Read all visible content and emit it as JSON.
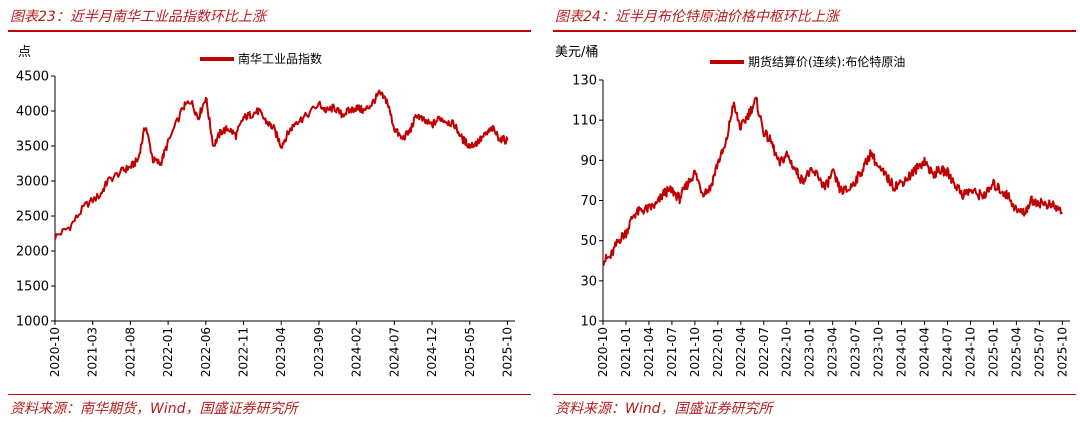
{
  "chart_data": [
    {
      "type": "line",
      "figure_title": "图表23：近半月南华工业品指数环比上涨",
      "source": "资料来源：南华期货，Wind，国盛证券研究所",
      "ylabel": "点",
      "ylim": [
        1000,
        4500
      ],
      "yticks": [
        "1000",
        "1500",
        "2000",
        "2500",
        "3000",
        "3500",
        "4000",
        "4500"
      ],
      "xticks": [
        "2020-10",
        "2021-03",
        "2021-08",
        "2022-01",
        "2022-06",
        "2022-11",
        "2023-04",
        "2023-09",
        "2024-02",
        "2024-07",
        "2024-12",
        "2025-05",
        "2025-10"
      ],
      "legend": "top-center",
      "series": [
        {
          "name": "南华工业品指数",
          "color": "#c00000",
          "x": [
            "2020-10",
            "2020-12",
            "2021-02",
            "2021-04",
            "2021-05",
            "2021-07",
            "2021-08",
            "2021-09",
            "2021-10",
            "2021-11",
            "2021-12",
            "2022-01",
            "2022-03",
            "2022-04",
            "2022-05",
            "2022-06",
            "2022-07",
            "2022-08",
            "2022-09",
            "2022-10",
            "2022-11",
            "2022-12",
            "2023-01",
            "2023-02",
            "2023-03",
            "2023-04",
            "2023-05",
            "2023-06",
            "2023-07",
            "2023-09",
            "2023-10",
            "2023-11",
            "2023-12",
            "2024-01",
            "2024-02",
            "2024-03",
            "2024-04",
            "2024-05",
            "2024-06",
            "2024-07",
            "2024-08",
            "2024-09",
            "2024-10",
            "2024-11",
            "2024-12",
            "2025-01",
            "2025-02",
            "2025-03",
            "2025-04",
            "2025-05",
            "2025-06",
            "2025-07",
            "2025-08",
            "2025-09",
            "2025-10"
          ],
          "values": [
            2200,
            2350,
            2650,
            2800,
            3000,
            3150,
            3200,
            3300,
            3800,
            3300,
            3250,
            3550,
            4050,
            4150,
            3900,
            4200,
            3500,
            3700,
            3750,
            3650,
            3900,
            3950,
            4000,
            3850,
            3750,
            3500,
            3700,
            3850,
            3900,
            4100,
            4000,
            4050,
            3950,
            4000,
            4050,
            4000,
            4100,
            4250,
            4150,
            3750,
            3600,
            3700,
            3950,
            3850,
            3800,
            3900,
            3850,
            3800,
            3600,
            3500,
            3550,
            3650,
            3750,
            3600,
            3580
          ]
        }
      ]
    },
    {
      "type": "line",
      "figure_title": "图表24：近半月布伦特原油价格中枢环比上涨",
      "source": "资料来源：Wind，国盛证券研究所",
      "ylabel": "美元/桶",
      "ylim": [
        10,
        130
      ],
      "yticks": [
        "10",
        "30",
        "50",
        "70",
        "90",
        "110",
        "130"
      ],
      "xticks": [
        "2020-10",
        "2021-01",
        "2021-04",
        "2021-07",
        "2021-10",
        "2022-01",
        "2022-04",
        "2022-07",
        "2022-10",
        "2023-01",
        "2023-04",
        "2023-07",
        "2023-10",
        "2024-01",
        "2024-04",
        "2024-07",
        "2024-10",
        "2025-01",
        "2025-04",
        "2025-07",
        "2025-10"
      ],
      "legend": "top-center",
      "series": [
        {
          "name": "期货结算价(连续):布伦特原油",
          "color": "#c00000",
          "x": [
            "2020-10",
            "2020-11",
            "2020-12",
            "2021-01",
            "2021-02",
            "2021-03",
            "2021-04",
            "2021-05",
            "2021-06",
            "2021-07",
            "2021-08",
            "2021-09",
            "2021-10",
            "2021-11",
            "2021-12",
            "2022-01",
            "2022-02",
            "2022-03",
            "2022-04",
            "2022-05",
            "2022-06",
            "2022-07",
            "2022-08",
            "2022-09",
            "2022-10",
            "2022-11",
            "2022-12",
            "2023-01",
            "2023-02",
            "2023-03",
            "2023-04",
            "2023-05",
            "2023-06",
            "2023-07",
            "2023-08",
            "2023-09",
            "2023-10",
            "2023-11",
            "2023-12",
            "2024-01",
            "2024-02",
            "2024-03",
            "2024-04",
            "2024-05",
            "2024-06",
            "2024-07",
            "2024-08",
            "2024-09",
            "2024-10",
            "2024-11",
            "2024-12",
            "2025-01",
            "2025-02",
            "2025-03",
            "2025-04",
            "2025-05",
            "2025-06",
            "2025-07",
            "2025-08",
            "2025-09",
            "2025-10"
          ],
          "values": [
            40,
            42,
            50,
            54,
            63,
            65,
            66,
            68,
            74,
            75,
            71,
            78,
            84,
            74,
            76,
            89,
            97,
            118,
            106,
            113,
            120,
            104,
            99,
            88,
            93,
            86,
            80,
            84,
            83,
            76,
            84,
            75,
            75,
            80,
            86,
            94,
            86,
            82,
            77,
            79,
            82,
            86,
            90,
            83,
            85,
            84,
            78,
            73,
            75,
            73,
            73,
            78,
            75,
            72,
            65,
            64,
            70,
            69,
            68,
            67,
            64
          ]
        }
      ]
    }
  ]
}
